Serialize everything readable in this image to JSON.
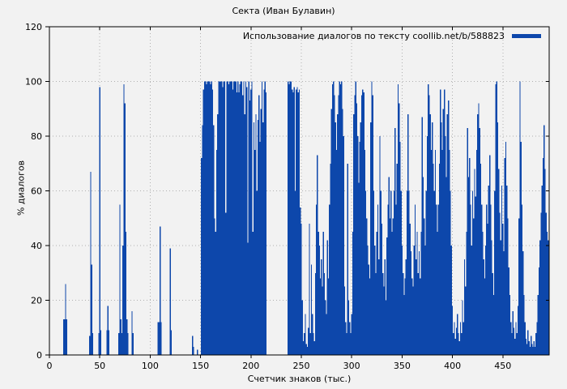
{
  "window": {
    "kind": "gnuplot-style-statistics-chart"
  },
  "colors": {
    "background": "#f2f2f2",
    "bar": "#0d47ab",
    "grid": "#b0b0b0",
    "axis": "#000000",
    "text": "#000000"
  },
  "chart_data": {
    "type": "bar",
    "title": "Секта (Иван Булавин)",
    "legend": "Использование диалогов по тексту coollib.net/b/588823",
    "legend_position": "top-right-inside",
    "xlabel": "Счетчик знаков (тыс.)",
    "ylabel": "% диалогов",
    "xlim": [
      0,
      496
    ],
    "ylim": [
      0,
      120
    ],
    "xticks": [
      0,
      50,
      100,
      150,
      200,
      250,
      300,
      350,
      400,
      450
    ],
    "yticks": [
      0,
      20,
      40,
      60,
      80,
      100,
      120
    ],
    "grid": true,
    "bar_color": "#0d47ab",
    "points": [
      [
        14,
        13
      ],
      [
        15,
        13
      ],
      [
        16,
        26
      ],
      [
        17,
        13
      ],
      [
        40,
        7
      ],
      [
        41,
        67
      ],
      [
        42,
        33
      ],
      [
        43,
        8
      ],
      [
        49,
        8
      ],
      [
        50,
        98
      ],
      [
        51,
        9
      ],
      [
        57,
        9
      ],
      [
        58,
        18
      ],
      [
        59,
        9
      ],
      [
        69,
        8
      ],
      [
        70,
        55
      ],
      [
        71,
        13
      ],
      [
        72,
        8
      ],
      [
        73,
        40
      ],
      [
        74,
        99
      ],
      [
        75,
        92
      ],
      [
        76,
        45
      ],
      [
        77,
        13
      ],
      [
        78,
        8
      ],
      [
        82,
        16
      ],
      [
        83,
        8
      ],
      [
        108,
        12
      ],
      [
        109,
        12
      ],
      [
        110,
        47
      ],
      [
        111,
        12
      ],
      [
        120,
        39
      ],
      [
        121,
        9
      ],
      [
        142,
        7
      ],
      [
        143,
        3
      ],
      [
        147,
        2
      ],
      [
        151,
        72
      ],
      [
        152,
        84
      ],
      [
        153,
        97
      ],
      [
        154,
        100
      ],
      [
        155,
        100
      ],
      [
        156,
        99
      ],
      [
        157,
        100
      ],
      [
        158,
        100
      ],
      [
        159,
        100
      ],
      [
        160,
        99
      ],
      [
        161,
        100
      ],
      [
        162,
        97
      ],
      [
        163,
        84
      ],
      [
        164,
        50
      ],
      [
        165,
        45
      ],
      [
        166,
        75
      ],
      [
        167,
        88
      ],
      [
        168,
        100
      ],
      [
        169,
        100
      ],
      [
        170,
        100
      ],
      [
        171,
        100
      ],
      [
        172,
        98
      ],
      [
        173,
        100
      ],
      [
        174,
        100
      ],
      [
        175,
        52
      ],
      [
        176,
        100
      ],
      [
        177,
        100
      ],
      [
        178,
        99
      ],
      [
        179,
        100
      ],
      [
        180,
        100
      ],
      [
        181,
        100
      ],
      [
        182,
        97
      ],
      [
        183,
        100
      ],
      [
        184,
        100
      ],
      [
        185,
        100
      ],
      [
        186,
        96
      ],
      [
        187,
        100
      ],
      [
        188,
        96
      ],
      [
        189,
        99
      ],
      [
        190,
        100
      ],
      [
        191,
        100
      ],
      [
        192,
        95
      ],
      [
        193,
        100
      ],
      [
        194,
        88
      ],
      [
        195,
        100
      ],
      [
        196,
        98
      ],
      [
        197,
        41
      ],
      [
        198,
        100
      ],
      [
        199,
        93
      ],
      [
        200,
        97
      ],
      [
        201,
        100
      ],
      [
        202,
        45
      ],
      [
        203,
        85
      ],
      [
        204,
        75
      ],
      [
        205,
        88
      ],
      [
        206,
        60
      ],
      [
        207,
        86
      ],
      [
        208,
        95
      ],
      [
        209,
        78
      ],
      [
        210,
        90
      ],
      [
        211,
        100
      ],
      [
        212,
        85
      ],
      [
        213,
        97
      ],
      [
        214,
        100
      ],
      [
        215,
        96
      ],
      [
        237,
        100
      ],
      [
        238,
        99
      ],
      [
        239,
        100
      ],
      [
        240,
        100
      ],
      [
        241,
        97
      ],
      [
        242,
        96
      ],
      [
        243,
        98
      ],
      [
        244,
        60
      ],
      [
        245,
        97
      ],
      [
        246,
        98
      ],
      [
        247,
        96
      ],
      [
        248,
        97
      ],
      [
        249,
        54
      ],
      [
        250,
        48
      ],
      [
        251,
        20
      ],
      [
        252,
        5
      ],
      [
        253,
        8
      ],
      [
        254,
        15
      ],
      [
        255,
        4
      ],
      [
        256,
        3
      ],
      [
        257,
        10
      ],
      [
        258,
        48
      ],
      [
        259,
        8
      ],
      [
        260,
        33
      ],
      [
        261,
        15
      ],
      [
        262,
        8
      ],
      [
        263,
        5
      ],
      [
        264,
        30
      ],
      [
        265,
        55
      ],
      [
        266,
        73
      ],
      [
        267,
        45
      ],
      [
        268,
        40
      ],
      [
        269,
        28
      ],
      [
        270,
        35
      ],
      [
        271,
        25
      ],
      [
        272,
        45
      ],
      [
        273,
        30
      ],
      [
        274,
        20
      ],
      [
        275,
        15
      ],
      [
        276,
        42
      ],
      [
        277,
        28
      ],
      [
        278,
        55
      ],
      [
        279,
        70
      ],
      [
        280,
        90
      ],
      [
        281,
        99
      ],
      [
        282,
        100
      ],
      [
        283,
        95
      ],
      [
        284,
        85
      ],
      [
        285,
        75
      ],
      [
        286,
        88
      ],
      [
        287,
        95
      ],
      [
        288,
        100
      ],
      [
        289,
        99
      ],
      [
        290,
        100
      ],
      [
        291,
        90
      ],
      [
        292,
        80
      ],
      [
        293,
        25
      ],
      [
        294,
        12
      ],
      [
        295,
        8
      ],
      [
        296,
        70
      ],
      [
        297,
        20
      ],
      [
        298,
        12
      ],
      [
        299,
        8
      ],
      [
        300,
        15
      ],
      [
        301,
        45
      ],
      [
        302,
        88
      ],
      [
        303,
        95
      ],
      [
        304,
        100
      ],
      [
        305,
        92
      ],
      [
        306,
        80
      ],
      [
        307,
        63
      ],
      [
        308,
        78
      ],
      [
        309,
        85
      ],
      [
        310,
        95
      ],
      [
        311,
        97
      ],
      [
        312,
        96
      ],
      [
        313,
        75
      ],
      [
        314,
        60
      ],
      [
        315,
        50
      ],
      [
        316,
        40
      ],
      [
        317,
        33
      ],
      [
        318,
        28
      ],
      [
        319,
        85
      ],
      [
        320,
        100
      ],
      [
        321,
        95
      ],
      [
        322,
        60
      ],
      [
        323,
        40
      ],
      [
        324,
        30
      ],
      [
        325,
        45
      ],
      [
        326,
        55
      ],
      [
        327,
        35
      ],
      [
        328,
        80
      ],
      [
        329,
        60
      ],
      [
        330,
        48
      ],
      [
        331,
        30
      ],
      [
        332,
        25
      ],
      [
        333,
        35
      ],
      [
        334,
        20
      ],
      [
        335,
        43
      ],
      [
        336,
        55
      ],
      [
        337,
        65
      ],
      [
        338,
        50
      ],
      [
        339,
        60
      ],
      [
        340,
        45
      ],
      [
        341,
        50
      ],
      [
        342,
        60
      ],
      [
        343,
        83
      ],
      [
        344,
        55
      ],
      [
        345,
        70
      ],
      [
        346,
        99
      ],
      [
        347,
        92
      ],
      [
        348,
        78
      ],
      [
        349,
        60
      ],
      [
        350,
        40
      ],
      [
        351,
        30
      ],
      [
        352,
        22
      ],
      [
        353,
        28
      ],
      [
        354,
        35
      ],
      [
        355,
        60
      ],
      [
        356,
        88
      ],
      [
        357,
        60
      ],
      [
        358,
        48
      ],
      [
        359,
        38
      ],
      [
        360,
        28
      ],
      [
        361,
        25
      ],
      [
        362,
        40
      ],
      [
        363,
        55
      ],
      [
        364,
        35
      ],
      [
        365,
        45
      ],
      [
        366,
        30
      ],
      [
        367,
        38
      ],
      [
        368,
        28
      ],
      [
        369,
        45
      ],
      [
        370,
        87
      ],
      [
        371,
        65
      ],
      [
        372,
        50
      ],
      [
        373,
        40
      ],
      [
        374,
        60
      ],
      [
        375,
        80
      ],
      [
        376,
        99
      ],
      [
        377,
        95
      ],
      [
        378,
        88
      ],
      [
        379,
        75
      ],
      [
        380,
        85
      ],
      [
        381,
        70
      ],
      [
        382,
        60
      ],
      [
        383,
        75
      ],
      [
        384,
        55
      ],
      [
        385,
        45
      ],
      [
        386,
        55
      ],
      [
        387,
        70
      ],
      [
        388,
        97
      ],
      [
        389,
        85
      ],
      [
        390,
        75
      ],
      [
        391,
        90
      ],
      [
        392,
        97
      ],
      [
        393,
        80
      ],
      [
        394,
        65
      ],
      [
        395,
        88
      ],
      [
        396,
        93
      ],
      [
        397,
        75
      ],
      [
        398,
        60
      ],
      [
        399,
        40
      ],
      [
        400,
        18
      ],
      [
        401,
        8
      ],
      [
        402,
        12
      ],
      [
        403,
        6
      ],
      [
        404,
        10
      ],
      [
        405,
        15
      ],
      [
        406,
        8
      ],
      [
        407,
        5
      ],
      [
        408,
        12
      ],
      [
        409,
        8
      ],
      [
        410,
        20
      ],
      [
        411,
        12
      ],
      [
        412,
        35
      ],
      [
        413,
        25
      ],
      [
        414,
        45
      ],
      [
        415,
        83
      ],
      [
        416,
        65
      ],
      [
        417,
        72
      ],
      [
        418,
        55
      ],
      [
        419,
        40
      ],
      [
        420,
        60
      ],
      [
        421,
        50
      ],
      [
        422,
        68
      ],
      [
        423,
        58
      ],
      [
        424,
        75
      ],
      [
        425,
        88
      ],
      [
        426,
        92
      ],
      [
        427,
        83
      ],
      [
        428,
        70
      ],
      [
        429,
        55
      ],
      [
        430,
        45
      ],
      [
        431,
        35
      ],
      [
        432,
        28
      ],
      [
        433,
        40
      ],
      [
        434,
        55
      ],
      [
        435,
        48
      ],
      [
        436,
        62
      ],
      [
        437,
        73
      ],
      [
        438,
        55
      ],
      [
        439,
        42
      ],
      [
        440,
        30
      ],
      [
        441,
        22
      ],
      [
        442,
        60
      ],
      [
        443,
        99
      ],
      [
        444,
        100
      ],
      [
        445,
        85
      ],
      [
        446,
        68
      ],
      [
        447,
        52
      ],
      [
        448,
        42
      ],
      [
        449,
        62
      ],
      [
        450,
        48
      ],
      [
        451,
        38
      ],
      [
        452,
        72
      ],
      [
        453,
        78
      ],
      [
        454,
        62
      ],
      [
        455,
        50
      ],
      [
        456,
        32
      ],
      [
        457,
        22
      ],
      [
        458,
        12
      ],
      [
        459,
        8
      ],
      [
        460,
        16
      ],
      [
        461,
        10
      ],
      [
        462,
        6
      ],
      [
        463,
        12
      ],
      [
        464,
        8
      ],
      [
        465,
        18
      ],
      [
        466,
        50
      ],
      [
        467,
        100
      ],
      [
        468,
        78
      ],
      [
        469,
        55
      ],
      [
        470,
        38
      ],
      [
        471,
        22
      ],
      [
        472,
        12
      ],
      [
        473,
        6
      ],
      [
        474,
        4
      ],
      [
        475,
        9
      ],
      [
        476,
        5
      ],
      [
        477,
        3
      ],
      [
        478,
        7
      ],
      [
        479,
        4
      ],
      [
        480,
        3
      ],
      [
        481,
        5
      ],
      [
        482,
        3
      ],
      [
        483,
        8
      ],
      [
        484,
        12
      ],
      [
        485,
        22
      ],
      [
        486,
        32
      ],
      [
        487,
        42
      ],
      [
        488,
        52
      ],
      [
        489,
        62
      ],
      [
        490,
        72
      ],
      [
        491,
        84
      ],
      [
        492,
        68
      ],
      [
        493,
        52
      ],
      [
        494,
        45
      ],
      [
        495,
        42
      ]
    ]
  }
}
